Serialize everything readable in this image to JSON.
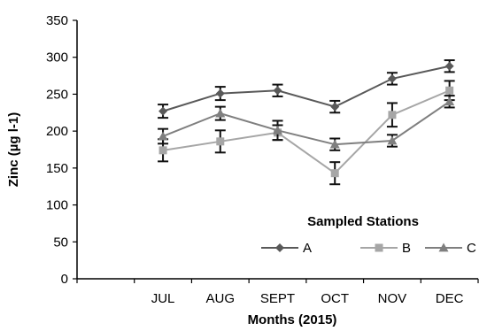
{
  "chart_data": {
    "type": "line",
    "title": "",
    "xlabel": "Months (2015)",
    "ylabel": "Zinc (µg l-1)",
    "ylim": [
      0,
      350
    ],
    "yticks": [
      "0",
      "50",
      "100",
      "150",
      "200",
      "250",
      "300",
      "350"
    ],
    "categories": [
      "JUL",
      "AUG",
      "SEPT",
      "OCT",
      "NOV",
      "DEC"
    ],
    "grid": false,
    "error_bars": true,
    "legend": {
      "title": "Sampled Stations",
      "placement": "lower-right"
    },
    "series": [
      {
        "name": "A",
        "marker": "diamond",
        "color": "#595959",
        "values": [
          227,
          251,
          255,
          233,
          271,
          288
        ],
        "errors": [
          9,
          9,
          8,
          8,
          8,
          8
        ]
      },
      {
        "name": "B",
        "marker": "square",
        "color": "#a6a6a6",
        "values": [
          174,
          186,
          198,
          143,
          222,
          255
        ],
        "errors": [
          15,
          15,
          10,
          15,
          16,
          13
        ]
      },
      {
        "name": "C",
        "marker": "triangle",
        "color": "#7f7f7f",
        "values": [
          193,
          224,
          201,
          182,
          187,
          240
        ],
        "errors": [
          10,
          9,
          13,
          8,
          8,
          8
        ]
      }
    ]
  }
}
